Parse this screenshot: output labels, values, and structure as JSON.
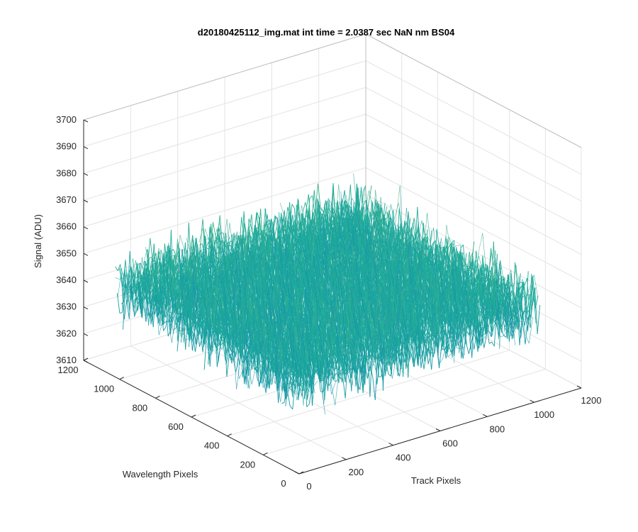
{
  "chart_data": {
    "type": "surface",
    "title": "d20180425112_img.mat int time = 2.0387 sec  NaN nm BS04",
    "xlabel": "Track Pixels",
    "ylabel": "Wavelength Pixels",
    "zlabel": "Signal (ADU)",
    "xlim": [
      0,
      1200
    ],
    "ylim": [
      0,
      1200
    ],
    "zlim": [
      3610,
      3700
    ],
    "x_ticks": [
      "0",
      "200",
      "400",
      "600",
      "800",
      "1000",
      "1200"
    ],
    "y_ticks": [
      "0",
      "200",
      "400",
      "600",
      "800",
      "1000",
      "1200"
    ],
    "z_ticks": [
      "3610",
      "3620",
      "3630",
      "3640",
      "3650",
      "3660",
      "3670",
      "3680",
      "3690",
      "3700"
    ],
    "grid": true,
    "colormap": "parula",
    "data_extent": {
      "x": [
        0,
        1024
      ],
      "y": [
        0,
        1024
      ]
    },
    "surface_summary": {
      "mean": 3645,
      "min": 3612,
      "max": 3688
    },
    "colors": {
      "low": "#0a72bd",
      "mid": "#1fae9a",
      "high": "#e8c13f"
    }
  }
}
